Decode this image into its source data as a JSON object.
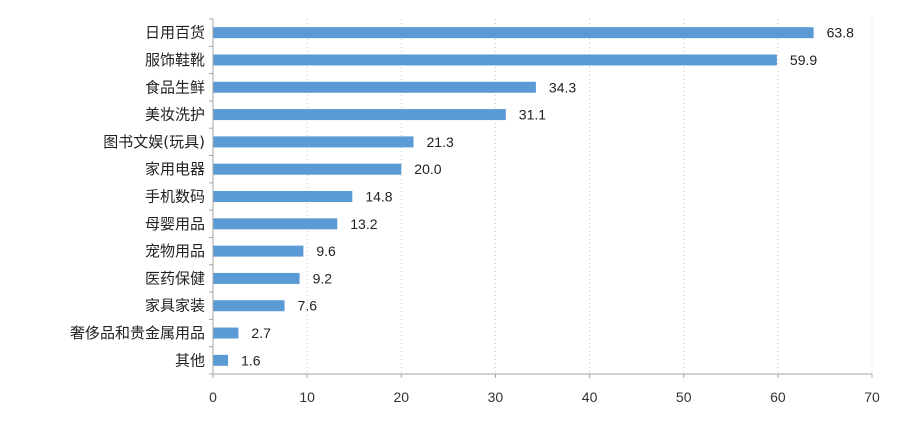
{
  "chart_data": {
    "type": "bar",
    "orientation": "horizontal",
    "title": "",
    "xlabel": "",
    "ylabel": "",
    "categories": [
      "日用百货",
      "服饰鞋靴",
      "食品生鲜",
      "美妆洗护",
      "图书文娱(玩具)",
      "家用电器",
      "手机数码",
      "母婴用品",
      "宠物用品",
      "医药保健",
      "家具家装",
      "奢侈品和贵金属用品",
      "其他"
    ],
    "values": [
      63.8,
      59.9,
      34.3,
      31.1,
      21.3,
      20.0,
      14.8,
      13.2,
      9.6,
      9.2,
      7.6,
      2.7,
      1.6
    ],
    "value_labels": [
      "63.8",
      "59.9",
      "34.3",
      "31.1",
      "21.3",
      "20.0",
      "14.8",
      "13.2",
      "9.6",
      "9.2",
      "7.6",
      "2.7",
      "1.6"
    ],
    "xlim": [
      0,
      70
    ],
    "xticks": [
      0,
      10,
      20,
      30,
      40,
      50,
      60,
      70
    ],
    "xtick_labels": [
      "0",
      "10",
      "20",
      "30",
      "40",
      "50",
      "60",
      "70"
    ],
    "grid": "vertical dotted",
    "legend": "none",
    "colors": {
      "bar": "#5B9BD5",
      "grid": "#C8C8C8",
      "axis": "#A6A6A6"
    }
  }
}
